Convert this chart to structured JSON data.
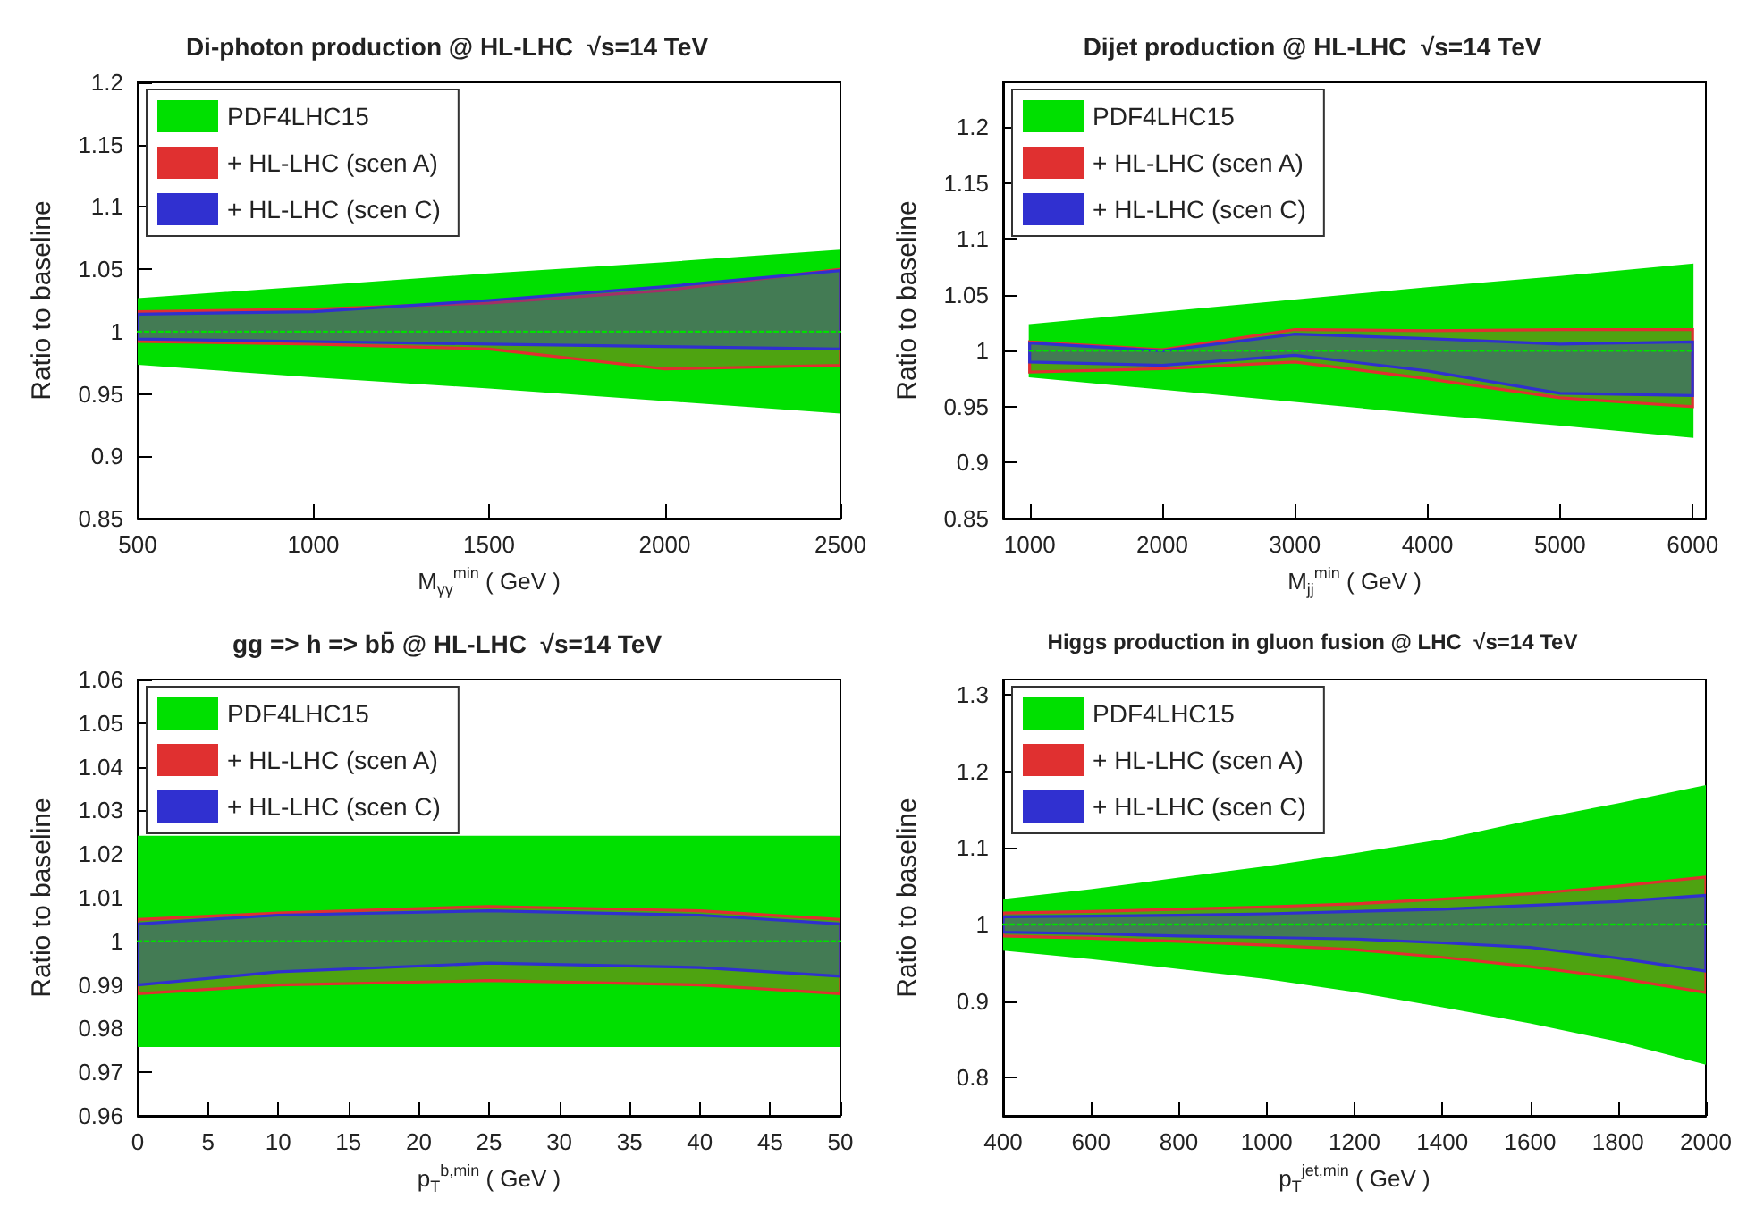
{
  "chart_data": [
    {
      "type": "line",
      "title": "Di-photon production @ HL-LHC  √s=14 TeV",
      "xlabel": "M$_{γγ}$$^{min}$ ( GeV )",
      "ylabel": "Ratio to baseline",
      "x": [
        500,
        1000,
        1500,
        2000,
        2500
      ],
      "xlim": [
        500,
        2500
      ],
      "xticks": [
        500,
        1000,
        1500,
        2000,
        2500
      ],
      "ylim": [
        0.85,
        1.2
      ],
      "yticks": [
        0.85,
        0.9,
        0.95,
        1,
        1.05,
        1.1,
        1.15,
        1.2
      ],
      "legend": "top left",
      "line_style": "dotted",
      "series": [
        {
          "name": "PDF4LHC15",
          "color": "#00e000",
          "values": [
            1,
            1,
            1,
            1,
            1
          ],
          "lower": [
            0.974,
            0.964,
            0.955,
            0.945,
            0.935
          ],
          "upper": [
            1.026,
            1.036,
            1.046,
            1.055,
            1.065
          ]
        },
        {
          "name": "+ HL-LHC (scen A)",
          "color": "#e03030",
          "values": [
            null,
            null,
            null,
            null,
            null
          ],
          "lower": [
            0.992,
            0.99,
            0.986,
            0.97,
            0.973
          ],
          "upper": [
            1.016,
            1.018,
            1.023,
            1.033,
            1.05
          ]
        },
        {
          "name": "+ HL-LHC (scen C)",
          "color": "#3030d0",
          "values": [
            null,
            null,
            null,
            null,
            null
          ],
          "lower": [
            0.994,
            0.992,
            0.99,
            0.988,
            0.986
          ],
          "upper": [
            1.014,
            1.016,
            1.025,
            1.036,
            1.049
          ]
        }
      ]
    },
    {
      "type": "line",
      "title": "Dijet production @ HL-LHC  √s=14 TeV",
      "xlabel": "M$_{jj}$$^{min}$ ( GeV )",
      "ylabel": "Ratio to baseline",
      "x": [
        1000,
        2000,
        3000,
        4000,
        5000,
        6000
      ],
      "xlim": [
        800,
        6100
      ],
      "xticks": [
        1000,
        2000,
        3000,
        4000,
        5000,
        6000
      ],
      "ylim": [
        0.85,
        1.24
      ],
      "yticks": [
        0.85,
        0.9,
        0.95,
        1,
        1.05,
        1.1,
        1.15,
        1.2
      ],
      "legend": "top left",
      "line_style": "dotted",
      "series": [
        {
          "name": "PDF4LHC15",
          "color": "#00e000",
          "values": [
            1,
            1,
            1,
            1,
            1,
            1
          ],
          "lower": [
            0.977,
            0.966,
            0.955,
            0.944,
            0.934,
            0.923
          ],
          "upper": [
            1.023,
            1.034,
            1.045,
            1.056,
            1.066,
            1.077
          ]
        },
        {
          "name": "+ HL-LHC (scen A)",
          "color": "#e03030",
          "values": [
            null,
            null,
            null,
            null,
            null,
            null
          ],
          "lower": [
            0.981,
            0.984,
            0.99,
            0.975,
            0.958,
            0.95
          ],
          "upper": [
            1.008,
            1.001,
            1.019,
            1.018,
            1.019,
            1.019
          ]
        },
        {
          "name": "+ HL-LHC (scen C)",
          "color": "#3030d0",
          "values": [
            null,
            null,
            null,
            null,
            null,
            null
          ],
          "lower": [
            0.99,
            0.987,
            0.996,
            0.982,
            0.962,
            0.96
          ],
          "upper": [
            1.007,
            1,
            1.015,
            1.011,
            1.006,
            1.008
          ]
        }
      ]
    },
    {
      "type": "line",
      "title": "gg => h => bb̄ @ HL-LHC  √s=14 TeV",
      "xlabel": "p$_{T}$$^{b,min}$ ( GeV )",
      "ylabel": "Ratio to baseline",
      "x": [
        0,
        10,
        25,
        40,
        50
      ],
      "xlim": [
        0,
        50
      ],
      "xticks": [
        0,
        5,
        10,
        15,
        20,
        25,
        30,
        35,
        40,
        45,
        50
      ],
      "ylim": [
        0.96,
        1.06
      ],
      "yticks": [
        0.96,
        0.97,
        0.98,
        0.99,
        1,
        1.01,
        1.02,
        1.03,
        1.04,
        1.05,
        1.06
      ],
      "legend": "top left",
      "line_style": "dotted",
      "series": [
        {
          "name": "PDF4LHC15",
          "color": "#00e000",
          "values": [
            1,
            1,
            1,
            1,
            1
          ],
          "lower": [
            0.976,
            0.976,
            0.976,
            0.976,
            0.976
          ],
          "upper": [
            1.024,
            1.024,
            1.024,
            1.024,
            1.024
          ]
        },
        {
          "name": "+ HL-LHC (scen A)",
          "color": "#e03030",
          "values": [
            null,
            null,
            null,
            null,
            null
          ],
          "lower": [
            0.988,
            0.99,
            0.991,
            0.99,
            0.988
          ],
          "upper": [
            1.005,
            1.0065,
            1.008,
            1.007,
            1.005
          ]
        },
        {
          "name": "+ HL-LHC (scen C)",
          "color": "#3030d0",
          "values": [
            null,
            null,
            null,
            null,
            null
          ],
          "lower": [
            0.99,
            0.993,
            0.995,
            0.994,
            0.992
          ],
          "upper": [
            1.004,
            1.006,
            1.007,
            1.006,
            1.004
          ]
        }
      ]
    },
    {
      "type": "line",
      "title": "Higgs production in gluon fusion @ LHC  √s=14 TeV",
      "xlabel": "p$_{T}$$^{jet,min}$ ( GeV )",
      "ylabel": "Ratio to baseline",
      "x": [
        400,
        600,
        800,
        1000,
        1200,
        1400,
        1600,
        1800,
        2000
      ],
      "xlim": [
        400,
        2000
      ],
      "xticks": [
        400,
        600,
        800,
        1000,
        1200,
        1400,
        1600,
        1800,
        2000
      ],
      "ylim": [
        0.75,
        1.32
      ],
      "yticks": [
        0.8,
        0.9,
        1,
        1.1,
        1.2,
        1.3
      ],
      "legend": "top left",
      "line_style": "dotted",
      "series": [
        {
          "name": "PDF4LHC15",
          "color": "#00e000",
          "values": [
            1,
            1,
            1,
            1,
            1,
            1,
            1,
            1,
            1
          ],
          "lower": [
            0.967,
            0.956,
            0.943,
            0.93,
            0.913,
            0.893,
            0.872,
            0.848,
            0.818
          ],
          "upper": [
            1.032,
            1.045,
            1.06,
            1.075,
            1.092,
            1.11,
            1.135,
            1.157,
            1.181
          ]
        },
        {
          "name": "+ HL-LHC (scen A)",
          "color": "#e03030",
          "values": [
            null,
            null,
            null,
            null,
            null,
            null,
            null,
            null,
            null
          ],
          "lower": [
            0.985,
            0.982,
            0.978,
            0.973,
            0.967,
            0.957,
            0.945,
            0.93,
            0.911
          ],
          "upper": [
            1.015,
            1.017,
            1.02,
            1.023,
            1.027,
            1.033,
            1.04,
            1.05,
            1.062
          ]
        },
        {
          "name": "+ HL-LHC (scen C)",
          "color": "#3030d0",
          "values": [
            null,
            null,
            null,
            null,
            null,
            null,
            null,
            null,
            null
          ],
          "lower": [
            0.99,
            0.988,
            0.985,
            0.983,
            0.981,
            0.976,
            0.97,
            0.956,
            0.939
          ],
          "upper": [
            1.01,
            1.011,
            1.012,
            1.014,
            1.017,
            1.02,
            1.025,
            1.03,
            1.038
          ]
        }
      ]
    }
  ]
}
